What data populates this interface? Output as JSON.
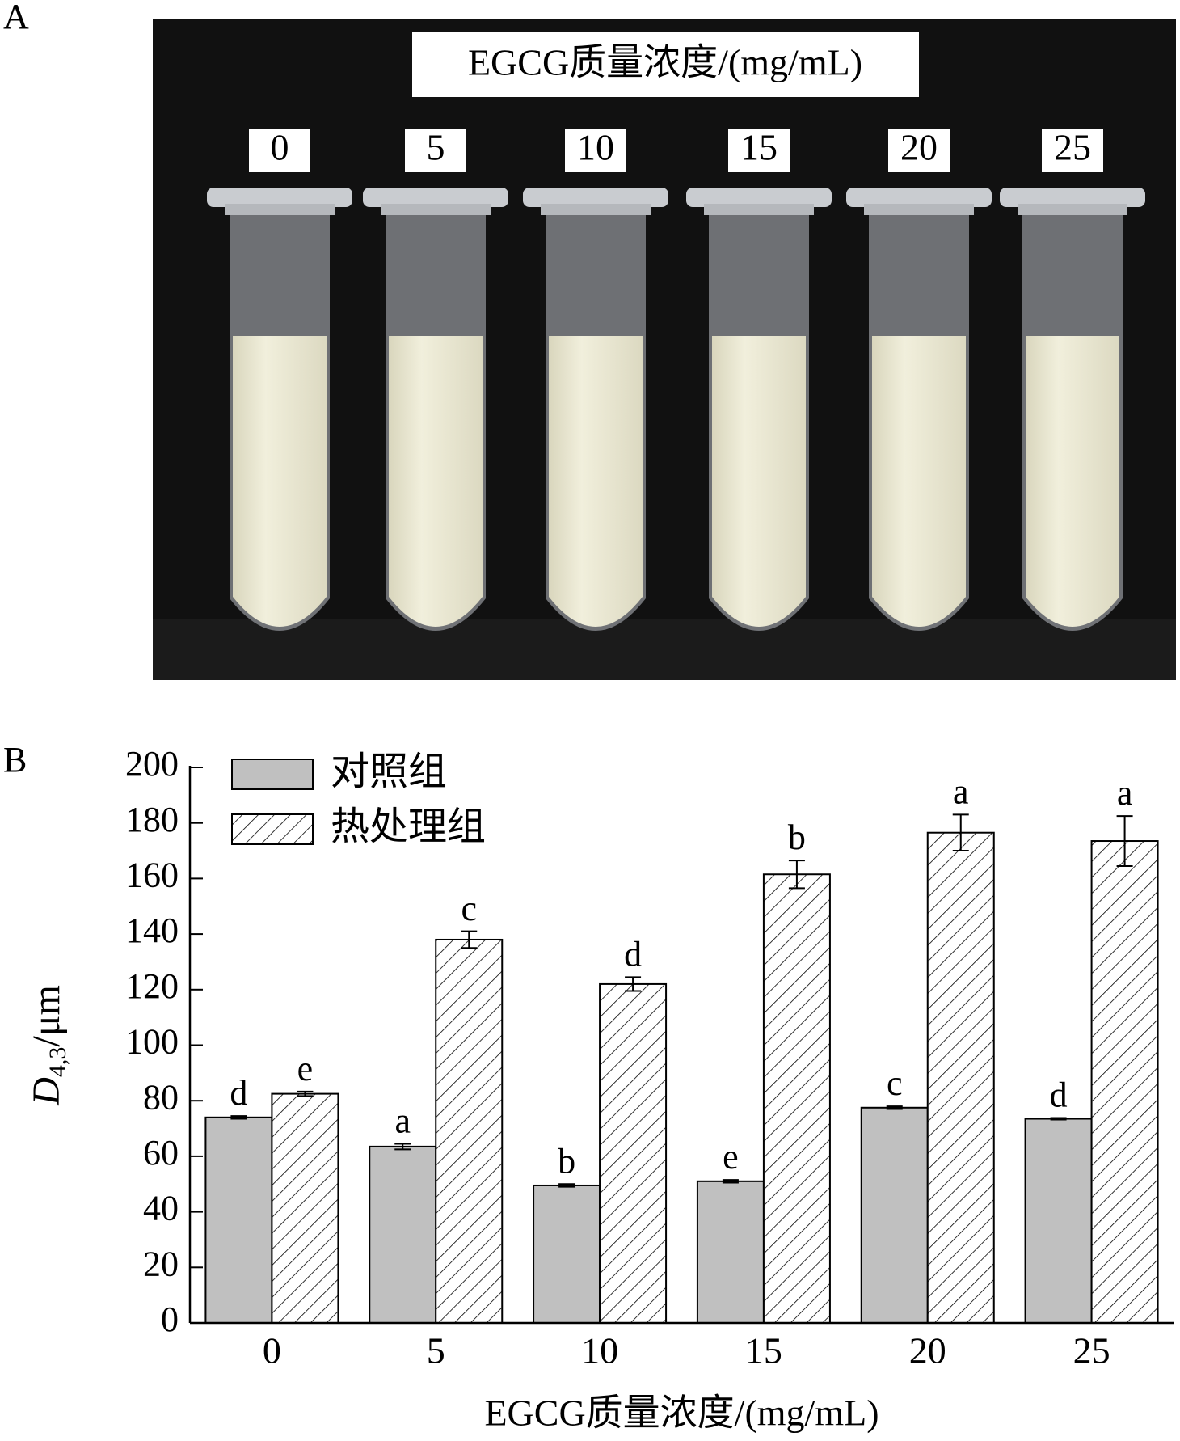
{
  "panel_a": {
    "label": "A",
    "photo_title": "EGCG质量浓度/(mg/mL)",
    "tube_labels": [
      "0",
      "5",
      "10",
      "15",
      "20",
      "25"
    ]
  },
  "chart_data": {
    "type": "bar",
    "panel_label": "B",
    "xlabel": "EGCG质量浓度/(mg/mL)",
    "ylabel": {
      "symbol": "D",
      "subscript": "4,3",
      "unit": "/μm"
    },
    "categories": [
      "0",
      "5",
      "10",
      "15",
      "20",
      "25"
    ],
    "series": [
      {
        "name": "对照组",
        "color": "#c0c0c0",
        "pattern": "solid",
        "values": [
          74,
          63.5,
          49.5,
          51,
          77.5,
          73.5
        ],
        "errors": [
          0.5,
          1,
          0.5,
          0.5,
          0.5,
          0.3
        ],
        "letters": [
          "d",
          "a",
          "b",
          "e",
          "c",
          "d"
        ]
      },
      {
        "name": "热处理组",
        "color": "#ffffff",
        "pattern": "hatch",
        "values": [
          82.5,
          138,
          122,
          161.5,
          176.5,
          173.5
        ],
        "errors": [
          0.8,
          3,
          2.5,
          5,
          6.5,
          9
        ],
        "letters": [
          "e",
          "c",
          "d",
          "b",
          "a",
          "a"
        ]
      }
    ],
    "ylim": [
      0,
      200
    ],
    "yticks": [
      0,
      20,
      40,
      60,
      80,
      100,
      120,
      140,
      160,
      180,
      200
    ],
    "legend": "upper left"
  }
}
